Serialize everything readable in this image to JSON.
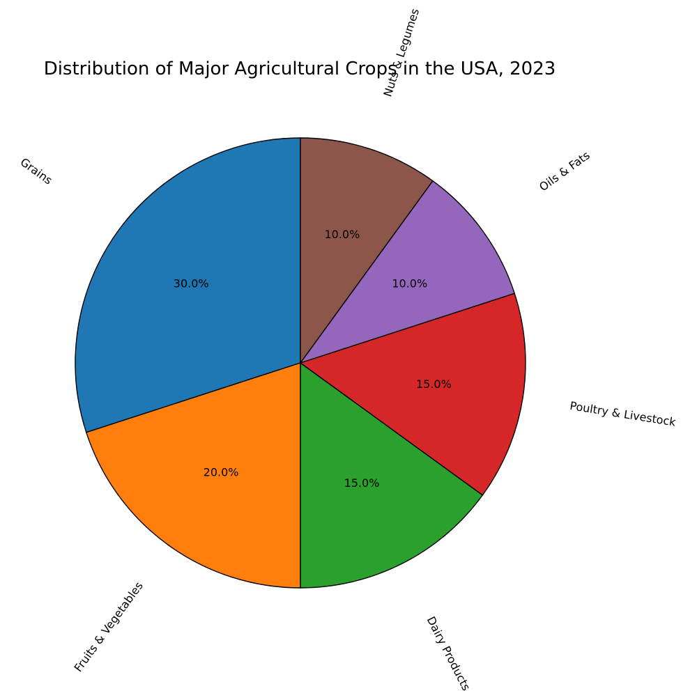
{
  "chart_data": {
    "type": "pie",
    "title": "Distribution of Major Agricultural Crops in the USA, 2023",
    "categories": [
      "Grains",
      "Fruits & Vegetables",
      "Dairy Products",
      "Poultry & Livestock",
      "Oils & Fats",
      "Nuts & Legumes"
    ],
    "values": [
      30,
      20,
      15,
      15,
      10,
      10
    ],
    "pct_labels": [
      "30.0%",
      "20.0%",
      "15.0%",
      "15.0%",
      "10.0%",
      "10.0%"
    ],
    "colors": [
      "#1f77b4",
      "#ff7f0e",
      "#2ca02c",
      "#d62728",
      "#9467bd",
      "#8c564b"
    ],
    "start_angle_deg": 90,
    "direction": "counterclockwise",
    "legend": "none"
  }
}
